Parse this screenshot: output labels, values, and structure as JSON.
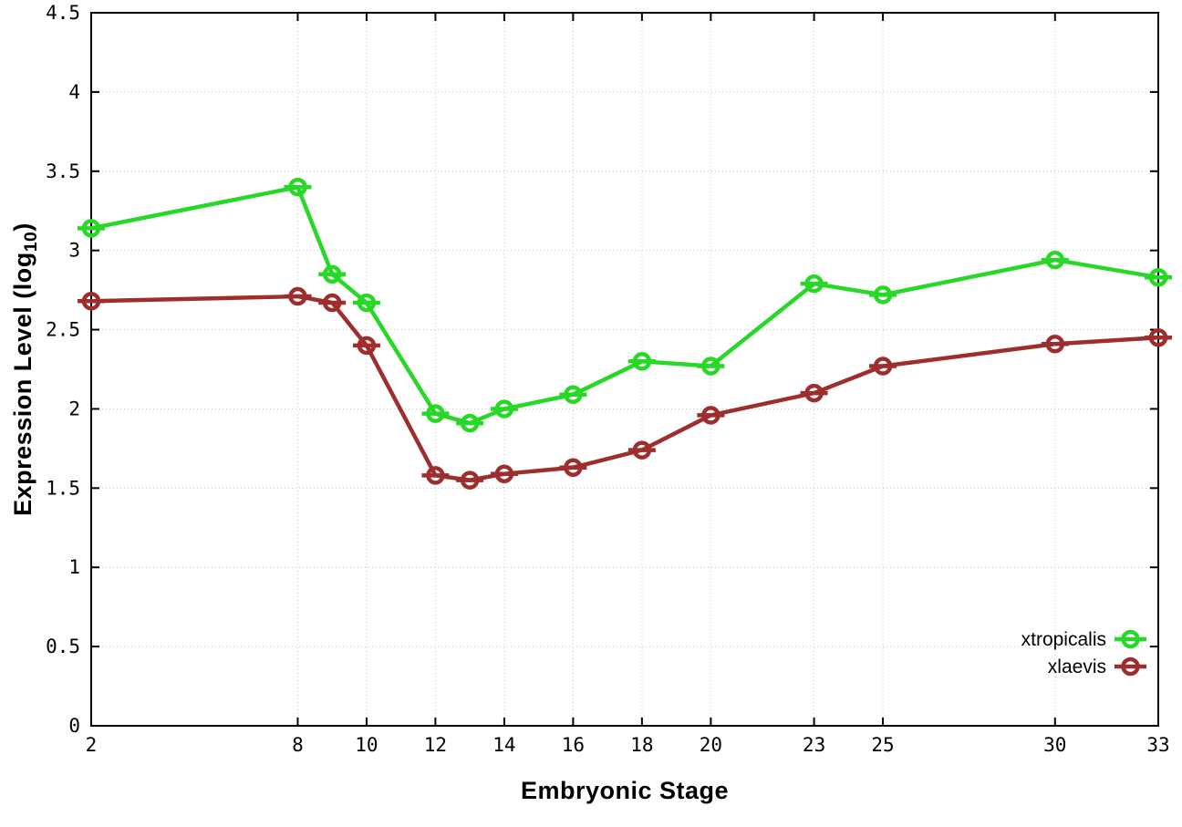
{
  "chart_data": {
    "type": "line",
    "title": "",
    "xlabel": "Embryonic Stage",
    "ylabel": "Expression Level (log10)",
    "ylabel_prefix": "Expression Level (log",
    "ylabel_sub": "10",
    "ylabel_suffix": ")",
    "x": [
      2,
      8,
      9,
      10,
      12,
      13,
      14,
      16,
      18,
      20,
      23,
      25,
      30,
      33
    ],
    "series": [
      {
        "name": "xtropicalis",
        "color": "#27d827",
        "marker": "open-circle-hline",
        "values": [
          3.14,
          3.4,
          2.85,
          2.67,
          1.97,
          1.91,
          2.0,
          2.09,
          2.3,
          2.27,
          2.79,
          2.72,
          2.94,
          2.83
        ]
      },
      {
        "name": "xlaevis",
        "color": "#9e2e2e",
        "marker": "open-circle-hline",
        "values": [
          2.68,
          2.71,
          2.67,
          2.4,
          1.58,
          1.55,
          1.59,
          1.63,
          1.74,
          1.96,
          2.1,
          2.27,
          2.41,
          2.45
        ]
      }
    ],
    "xlim": [
      2,
      33
    ],
    "ylim": [
      0,
      4.5
    ],
    "x_tick_values": [
      2,
      8,
      10,
      12,
      14,
      16,
      18,
      20,
      23,
      25,
      30,
      33
    ],
    "x_tick_labels": [
      "2",
      "8",
      "10",
      "12",
      "14",
      "16",
      "18",
      "20",
      "23",
      "25",
      "30",
      "33"
    ],
    "y_tick_values": [
      0,
      0.5,
      1,
      1.5,
      2,
      2.5,
      3,
      3.5,
      4,
      4.5
    ],
    "y_tick_labels": [
      "0",
      "0.5",
      "1",
      "1.5",
      "2",
      "2.5",
      "3",
      "3.5",
      "4",
      "4.5"
    ],
    "grid": true,
    "legend_position": "inside-right-bottom",
    "background_color": "#ffffff",
    "grid_color": "#c6c6c6",
    "axis_color": "#000000"
  }
}
